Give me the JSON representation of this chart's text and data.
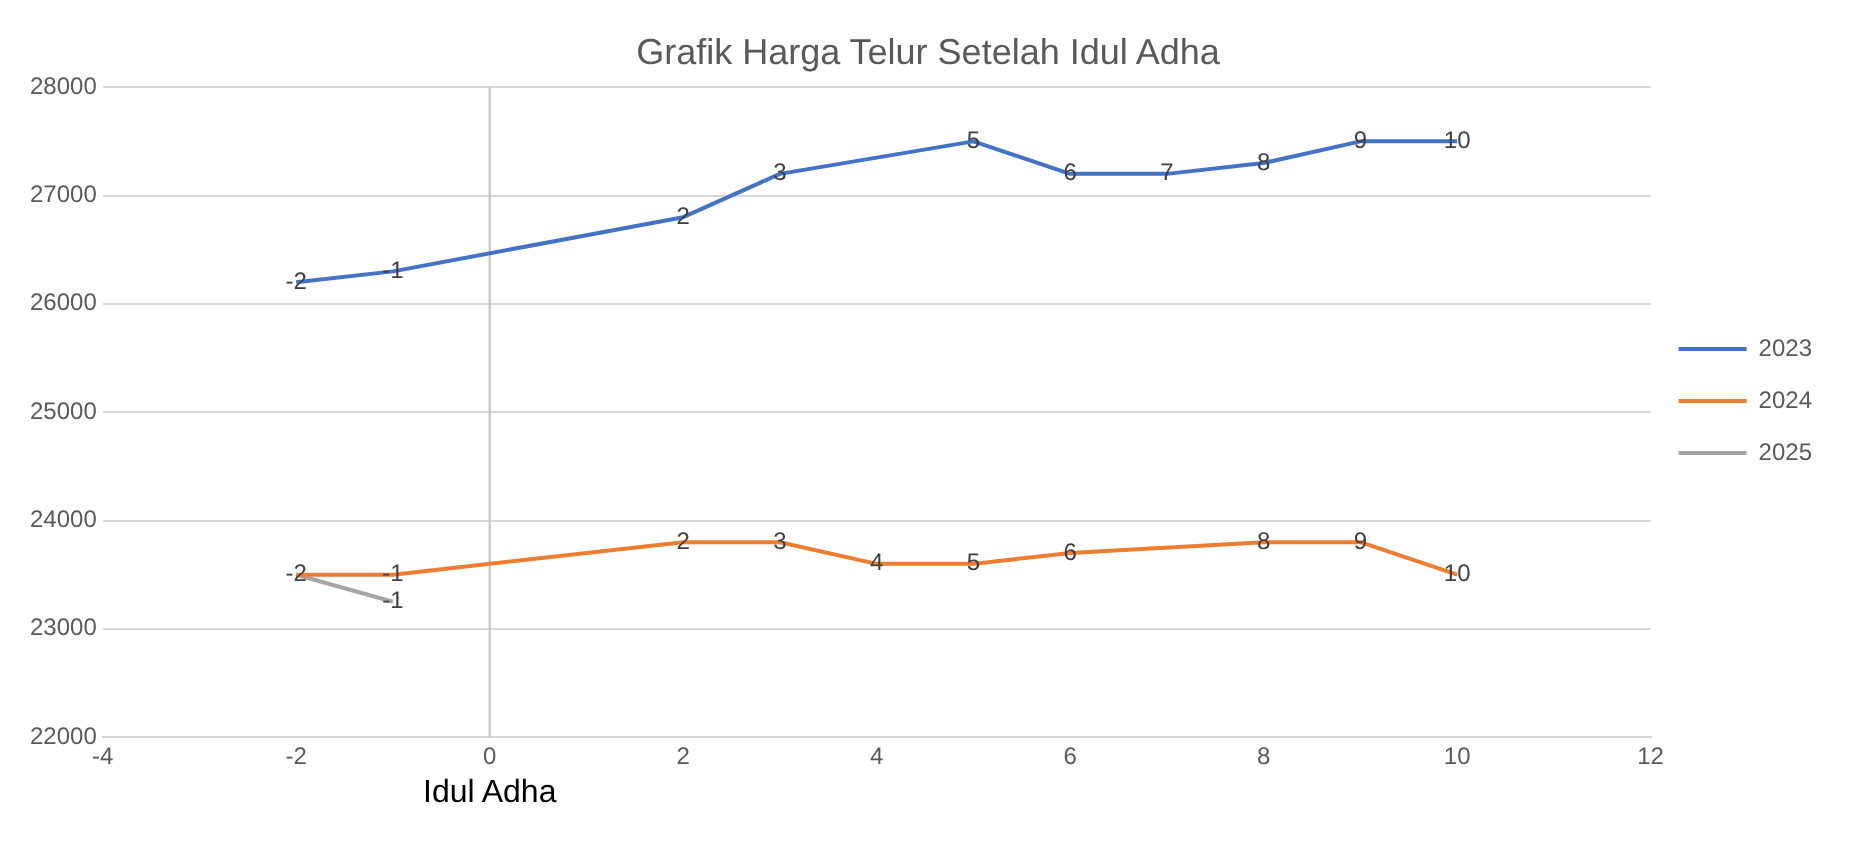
{
  "chart_data": {
    "type": "line",
    "title": "Grafik Harga Telur Setelah Idul Adha",
    "xlim": [
      -4,
      12
    ],
    "xticks": [
      -4,
      -2,
      0,
      2,
      4,
      6,
      8,
      10,
      12
    ],
    "ylim": [
      22000,
      28000
    ],
    "yticks": [
      22000,
      23000,
      24000,
      25000,
      26000,
      27000,
      28000
    ],
    "grid": "y",
    "legend": "right",
    "marker": "none",
    "line_style": "solid",
    "ref_lines": [
      {
        "axis": "x",
        "value": 0,
        "label": "Idul Adha",
        "color": "#bfbfbf"
      }
    ],
    "series": [
      {
        "name": "2023",
        "color": "#4472c4",
        "x": [
          -2,
          -1,
          2,
          3,
          5,
          6,
          7,
          8,
          9,
          10
        ],
        "values": [
          26200,
          26300,
          26800,
          27200,
          27500,
          27200,
          27200,
          27300,
          27500,
          27500
        ]
      },
      {
        "name": "2024",
        "color": "#ed7d31",
        "x": [
          -2,
          -1,
          2,
          3,
          4,
          5,
          6,
          8,
          9,
          10
        ],
        "values": [
          23500,
          23500,
          23800,
          23800,
          23600,
          23600,
          23700,
          23800,
          23800,
          23500
        ]
      },
      {
        "name": "2025",
        "color": "#a5a5a5",
        "x": [
          -2,
          -1
        ],
        "values": [
          23500,
          23250
        ]
      }
    ],
    "annotations": [
      {
        "text": "-2",
        "x": -2,
        "y": 26200
      },
      {
        "text": "-1",
        "x": -1,
        "y": 26300
      },
      {
        "text": "2",
        "x": 2,
        "y": 26800
      },
      {
        "text": "3",
        "x": 3,
        "y": 27200
      },
      {
        "text": "5",
        "x": 5,
        "y": 27500
      },
      {
        "text": "6",
        "x": 6,
        "y": 27200
      },
      {
        "text": "7",
        "x": 7,
        "y": 27200
      },
      {
        "text": "8",
        "x": 8,
        "y": 27300
      },
      {
        "text": "9",
        "x": 9,
        "y": 27500
      },
      {
        "text": "10",
        "x": 10,
        "y": 27500
      },
      {
        "text": "-2",
        "x": -2,
        "y": 23500
      },
      {
        "text": "-1",
        "x": -1,
        "y": 23500
      },
      {
        "text": "2",
        "x": 2,
        "y": 23800
      },
      {
        "text": "3",
        "x": 3,
        "y": 23800
      },
      {
        "text": "4",
        "x": 4,
        "y": 23600
      },
      {
        "text": "5",
        "x": 5,
        "y": 23600
      },
      {
        "text": "6",
        "x": 6,
        "y": 23700
      },
      {
        "text": "8",
        "x": 8,
        "y": 23800
      },
      {
        "text": "9",
        "x": 9,
        "y": 23800
      },
      {
        "text": "10",
        "x": 10,
        "y": 23500
      },
      {
        "text": "-1",
        "x": -1,
        "y": 23250
      }
    ]
  }
}
